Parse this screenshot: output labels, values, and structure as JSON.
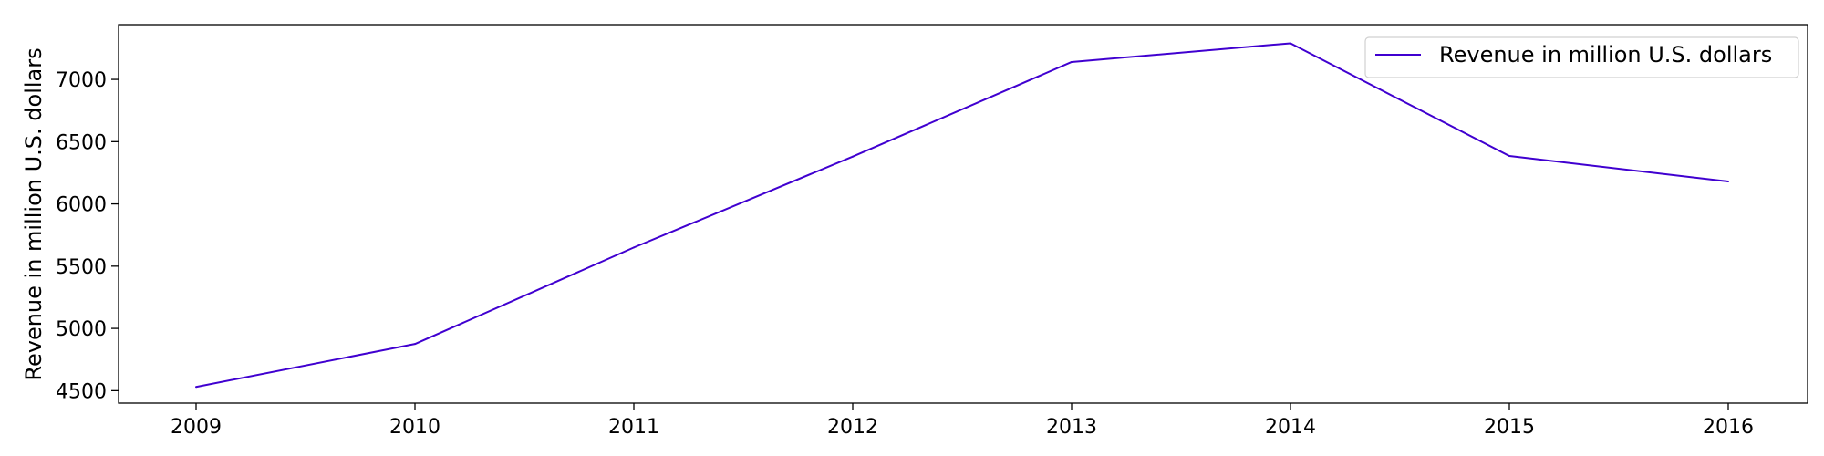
{
  "chart_data": {
    "type": "line",
    "title": "",
    "xlabel": "",
    "ylabel": "Revenue in million U.S. dollars",
    "x": [
      "2009",
      "2010",
      "2011",
      "2012",
      "2013",
      "2014",
      "2015",
      "2016"
    ],
    "series": [
      {
        "name": "Revenue in million U.S. dollars",
        "color": "#4000d0",
        "values": [
          4530,
          4875,
          5650,
          6380,
          7140,
          7290,
          6385,
          6180
        ]
      }
    ],
    "yticks": [
      "4500",
      "5000",
      "5500",
      "6000",
      "6500",
      "7000"
    ],
    "ylim": [
      4400,
      7440
    ],
    "grid": false,
    "legend_position": "top-right"
  }
}
